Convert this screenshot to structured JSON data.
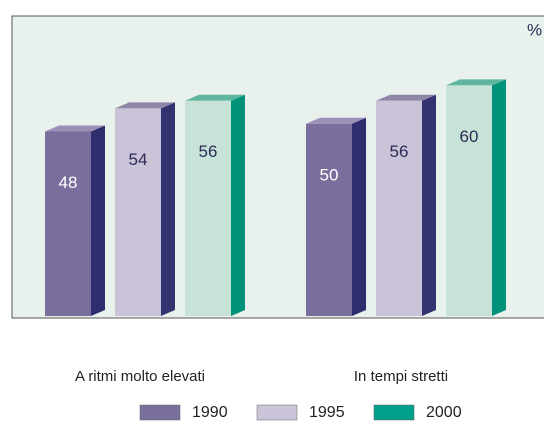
{
  "chart_data": {
    "type": "bar3d",
    "y_unit_label": "%",
    "categories": [
      "A ritmi molto elevati",
      "In tempi stretti"
    ],
    "series": [
      {
        "name": "1990",
        "color": "#7a6e9c",
        "values": [
          48,
          50
        ]
      },
      {
        "name": "1995",
        "color": "#cbc3d8",
        "values": [
          54,
          56
        ]
      },
      {
        "name": "2000",
        "color": "#00a08a",
        "values": [
          56,
          60
        ]
      }
    ],
    "ylim": [
      0,
      77
    ]
  }
}
